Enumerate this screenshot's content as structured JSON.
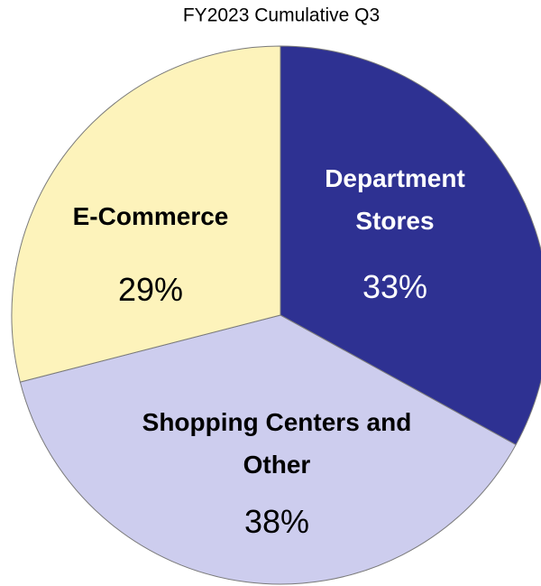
{
  "chart_data": {
    "type": "pie",
    "title": "FY2023 Cumulative Q3",
    "categories": [
      "Department Stores",
      "Shopping Centers and Other",
      "E-Commerce"
    ],
    "values": [
      33,
      38,
      29
    ],
    "value_labels": [
      "33%",
      "38%",
      "29%"
    ],
    "colors": [
      "#2e3192",
      "#cdcdee",
      "#fdf3bb"
    ],
    "label_colors": [
      "#ffffff",
      "#000000",
      "#000000"
    ]
  }
}
